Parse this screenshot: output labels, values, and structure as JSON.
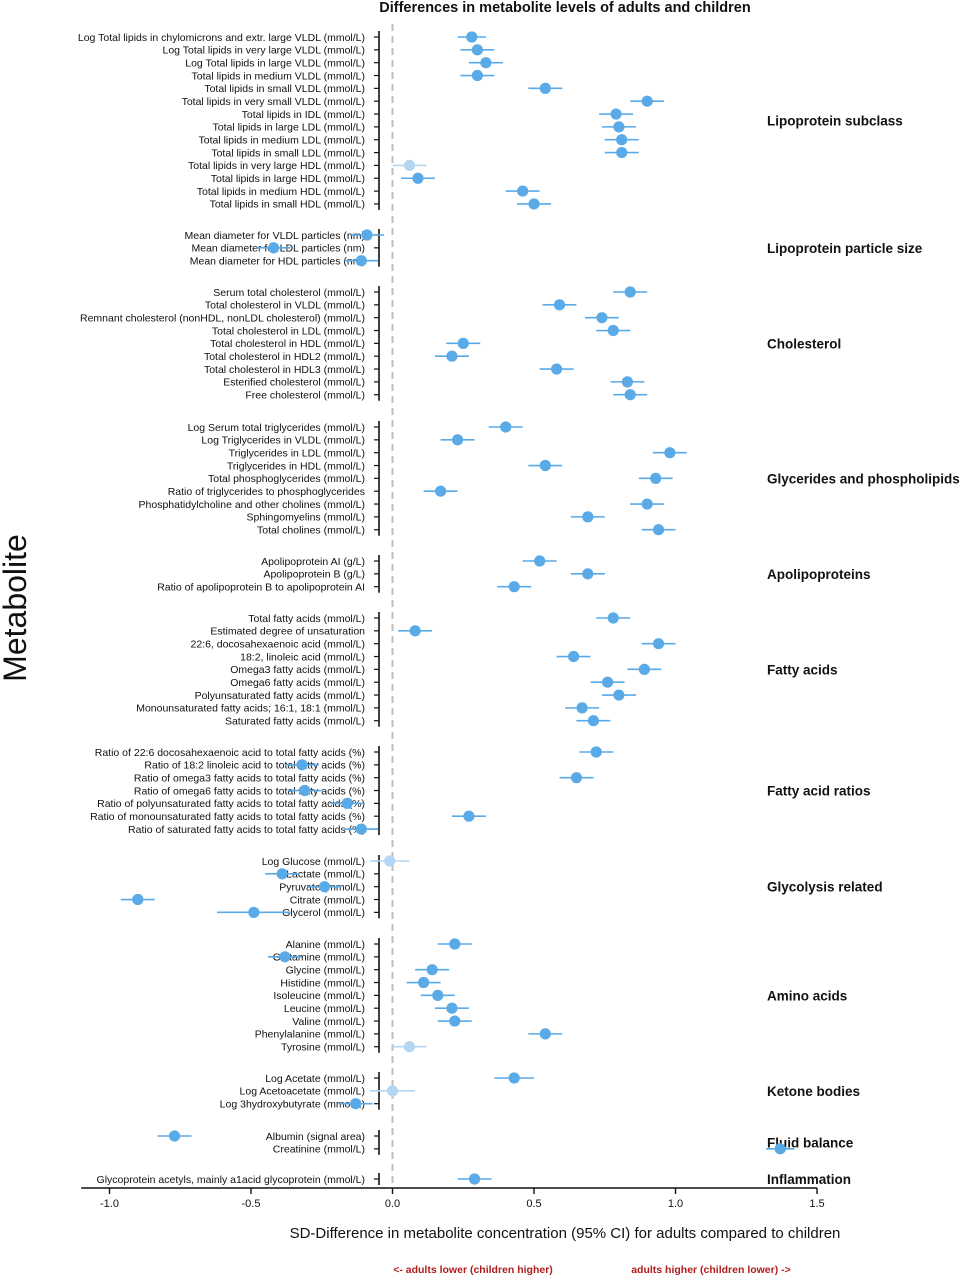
{
  "chart_data": {
    "type": "scatter",
    "title": "Differences in metabolite levels of adults and children",
    "xlabel": "SD-Difference in metabolite concentration (95% CI) for adults compared to children",
    "ylabel": "Metabolite",
    "xlim": [
      -1.1,
      1.5
    ],
    "xticks": [
      "-1.0",
      "-0.5",
      "0.0",
      "0.5",
      "1.0",
      "1.5"
    ],
    "xtick_values": [
      -1.0,
      -0.5,
      0.0,
      0.5,
      1.0,
      1.5
    ],
    "reference_line": 0.0,
    "point_color": "#5aaae8",
    "faded_point_color": "#b3d6f3",
    "note_color": "#b01c1c",
    "note_left": "<- adults lower (children higher)",
    "note_right": "adults higher (children lower) ->",
    "groups": [
      {
        "name": "Lipoprotein subclass",
        "rows": [
          {
            "label": "Log Total lipids in chylomicrons and extr. large VLDL (mmol/L)",
            "value": 0.28,
            "lo": 0.23,
            "hi": 0.33
          },
          {
            "label": "Log Total lipids in very large VLDL (mmol/L)",
            "value": 0.3,
            "lo": 0.24,
            "hi": 0.36
          },
          {
            "label": "Log Total lipids in large VLDL (mmol/L)",
            "value": 0.33,
            "lo": 0.27,
            "hi": 0.39
          },
          {
            "label": "Total lipids in medium VLDL (mmol/L)",
            "value": 0.3,
            "lo": 0.24,
            "hi": 0.36
          },
          {
            "label": "Total lipids in small VLDL (mmol/L)",
            "value": 0.54,
            "lo": 0.48,
            "hi": 0.6
          },
          {
            "label": "Total lipids in very small VLDL (mmol/L)",
            "value": 0.9,
            "lo": 0.84,
            "hi": 0.96
          },
          {
            "label": "Total lipids in IDL (mmol/L)",
            "value": 0.79,
            "lo": 0.73,
            "hi": 0.85
          },
          {
            "label": "Total lipids in large LDL (mmol/L)",
            "value": 0.8,
            "lo": 0.74,
            "hi": 0.86
          },
          {
            "label": "Total lipids in medium LDL (mmol/L)",
            "value": 0.81,
            "lo": 0.75,
            "hi": 0.87
          },
          {
            "label": "Total lipids in small LDL (mmol/L)",
            "value": 0.81,
            "lo": 0.75,
            "hi": 0.87
          },
          {
            "label": "Total lipids in very large HDL (mmol/L)",
            "value": 0.06,
            "lo": 0.0,
            "hi": 0.12,
            "faded": true
          },
          {
            "label": "Total lipids in large HDL (mmol/L)",
            "value": 0.09,
            "lo": 0.03,
            "hi": 0.15
          },
          {
            "label": "Total lipids in medium HDL (mmol/L)",
            "value": 0.46,
            "lo": 0.4,
            "hi": 0.52
          },
          {
            "label": "Total lipids in small HDL (mmol/L)",
            "value": 0.5,
            "lo": 0.44,
            "hi": 0.56
          }
        ]
      },
      {
        "name": "Lipoprotein particle size",
        "rows": [
          {
            "label": "Mean diameter for VLDL particles (nm)",
            "value": -0.09,
            "lo": -0.15,
            "hi": -0.03
          },
          {
            "label": "Mean diameter for LDL particles (nm)",
            "value": -0.42,
            "lo": -0.48,
            "hi": -0.36
          },
          {
            "label": "Mean diameter for HDL particles (nm)",
            "value": -0.11,
            "lo": -0.17,
            "hi": -0.05
          }
        ]
      },
      {
        "name": "Cholesterol",
        "rows": [
          {
            "label": "Serum total cholesterol (mmol/L)",
            "value": 0.84,
            "lo": 0.78,
            "hi": 0.9
          },
          {
            "label": "Total cholesterol in VLDL (mmol/L)",
            "value": 0.59,
            "lo": 0.53,
            "hi": 0.65
          },
          {
            "label": "Remnant cholesterol (nonHDL, nonLDL cholesterol) (mmol/L)",
            "value": 0.74,
            "lo": 0.68,
            "hi": 0.8
          },
          {
            "label": "Total cholesterol in LDL (mmol/L)",
            "value": 0.78,
            "lo": 0.72,
            "hi": 0.84
          },
          {
            "label": "Total cholesterol in HDL (mmol/L)",
            "value": 0.25,
            "lo": 0.19,
            "hi": 0.31
          },
          {
            "label": "Total cholesterol in HDL2 (mmol/L)",
            "value": 0.21,
            "lo": 0.15,
            "hi": 0.27
          },
          {
            "label": "Total cholesterol in HDL3 (mmol/L)",
            "value": 0.58,
            "lo": 0.52,
            "hi": 0.64
          },
          {
            "label": "Esterified cholesterol (mmol/L)",
            "value": 0.83,
            "lo": 0.77,
            "hi": 0.89
          },
          {
            "label": "Free cholesterol (mmol/L)",
            "value": 0.84,
            "lo": 0.78,
            "hi": 0.9
          }
        ]
      },
      {
        "name": "Glycerides and phospholipids",
        "rows": [
          {
            "label": "Log Serum total triglycerides (mmol/L)",
            "value": 0.4,
            "lo": 0.34,
            "hi": 0.46
          },
          {
            "label": "Log Triglycerides in VLDL (mmol/L)",
            "value": 0.23,
            "lo": 0.17,
            "hi": 0.29
          },
          {
            "label": "Triglycerides in LDL (mmol/L)",
            "value": 0.98,
            "lo": 0.92,
            "hi": 1.04
          },
          {
            "label": "Triglycerides in HDL (mmol/L)",
            "value": 0.54,
            "lo": 0.48,
            "hi": 0.6
          },
          {
            "label": "Total phosphoglycerides (mmol/L)",
            "value": 0.93,
            "lo": 0.87,
            "hi": 0.99
          },
          {
            "label": "Ratio of triglycerides to phosphoglycerides",
            "value": 0.17,
            "lo": 0.11,
            "hi": 0.23
          },
          {
            "label": "Phosphatidylcholine and other cholines (mmol/L)",
            "value": 0.9,
            "lo": 0.84,
            "hi": 0.96
          },
          {
            "label": "Sphingomyelins (mmol/L)",
            "value": 0.69,
            "lo": 0.63,
            "hi": 0.75
          },
          {
            "label": "Total cholines (mmol/L)",
            "value": 0.94,
            "lo": 0.88,
            "hi": 1.0
          }
        ]
      },
      {
        "name": "Apolipoproteins",
        "rows": [
          {
            "label": "Apolipoprotein AI (g/L)",
            "value": 0.52,
            "lo": 0.46,
            "hi": 0.58
          },
          {
            "label": "Apolipoprotein B (g/L)",
            "value": 0.69,
            "lo": 0.63,
            "hi": 0.75
          },
          {
            "label": "Ratio of apolipoprotein B to apolipoprotein AI",
            "value": 0.43,
            "lo": 0.37,
            "hi": 0.49
          }
        ]
      },
      {
        "name": "Fatty acids",
        "rows": [
          {
            "label": "Total fatty acids (mmol/L)",
            "value": 0.78,
            "lo": 0.72,
            "hi": 0.84
          },
          {
            "label": "Estimated degree of unsaturation",
            "value": 0.08,
            "lo": 0.02,
            "hi": 0.14
          },
          {
            "label": "22:6, docosahexaenoic acid (mmol/L)",
            "value": 0.94,
            "lo": 0.88,
            "hi": 1.0
          },
          {
            "label": "18:2, linoleic acid (mmol/L)",
            "value": 0.64,
            "lo": 0.58,
            "hi": 0.7
          },
          {
            "label": "Omega3 fatty acids (mmol/L)",
            "value": 0.89,
            "lo": 0.83,
            "hi": 0.95
          },
          {
            "label": "Omega6 fatty acids (mmol/L)",
            "value": 0.76,
            "lo": 0.7,
            "hi": 0.82
          },
          {
            "label": "Polyunsaturated fatty acids (mmol/L)",
            "value": 0.8,
            "lo": 0.74,
            "hi": 0.86
          },
          {
            "label": "Monounsaturated fatty acids; 16:1, 18:1 (mmol/L)",
            "value": 0.67,
            "lo": 0.61,
            "hi": 0.73
          },
          {
            "label": "Saturated fatty acids (mmol/L)",
            "value": 0.71,
            "lo": 0.65,
            "hi": 0.77
          }
        ]
      },
      {
        "name": "Fatty acid ratios",
        "rows": [
          {
            "label": "Ratio of 22:6 docosahexaenoic acid to total fatty acids (%)",
            "value": 0.72,
            "lo": 0.66,
            "hi": 0.78
          },
          {
            "label": "Ratio of 18:2 linoleic acid to total fatty acids (%)",
            "value": -0.32,
            "lo": -0.38,
            "hi": -0.26
          },
          {
            "label": "Ratio of omega3 fatty acids to total fatty acids (%)",
            "value": 0.65,
            "lo": 0.59,
            "hi": 0.71
          },
          {
            "label": "Ratio of omega6 fatty acids to total fatty acids (%)",
            "value": -0.31,
            "lo": -0.37,
            "hi": -0.25
          },
          {
            "label": "Ratio of polyunsaturated fatty acids to total fatty acids (%)",
            "value": -0.16,
            "lo": -0.22,
            "hi": -0.1
          },
          {
            "label": "Ratio of monounsaturated fatty acids to total fatty acids (%)",
            "value": 0.27,
            "lo": 0.21,
            "hi": 0.33
          },
          {
            "label": "Ratio of saturated fatty acids to total fatty acids (%)",
            "value": -0.11,
            "lo": -0.17,
            "hi": -0.05
          }
        ]
      },
      {
        "name": "Glycolysis related",
        "rows": [
          {
            "label": "Log Glucose (mmol/L)",
            "value": -0.01,
            "lo": -0.08,
            "hi": 0.06,
            "faded": true
          },
          {
            "label": "Lactate (mmol/L)",
            "value": -0.39,
            "lo": -0.45,
            "hi": -0.33
          },
          {
            "label": "Pyruvate (mmol/L)",
            "value": -0.24,
            "lo": -0.3,
            "hi": -0.18
          },
          {
            "label": "Citrate (mmol/L)",
            "value": -0.9,
            "lo": -0.96,
            "hi": -0.84
          },
          {
            "label": "Glycerol (mmol/L)",
            "value": -0.49,
            "lo": -0.62,
            "hi": -0.36
          }
        ]
      },
      {
        "name": "Amino acids",
        "rows": [
          {
            "label": "Alanine (mmol/L)",
            "value": 0.22,
            "lo": 0.16,
            "hi": 0.28
          },
          {
            "label": "Glutamine (mmol/L)",
            "value": -0.38,
            "lo": -0.44,
            "hi": -0.32
          },
          {
            "label": "Glycine (mmol/L)",
            "value": 0.14,
            "lo": 0.08,
            "hi": 0.2
          },
          {
            "label": "Histidine (mmol/L)",
            "value": 0.11,
            "lo": 0.05,
            "hi": 0.17
          },
          {
            "label": "Isoleucine (mmol/L)",
            "value": 0.16,
            "lo": 0.1,
            "hi": 0.22
          },
          {
            "label": "Leucine (mmol/L)",
            "value": 0.21,
            "lo": 0.15,
            "hi": 0.27
          },
          {
            "label": "Valine (mmol/L)",
            "value": 0.22,
            "lo": 0.16,
            "hi": 0.28
          },
          {
            "label": "Phenylalanine (mmol/L)",
            "value": 0.54,
            "lo": 0.48,
            "hi": 0.6
          },
          {
            "label": "Tyrosine (mmol/L)",
            "value": 0.06,
            "lo": 0.0,
            "hi": 0.12,
            "faded": true
          }
        ]
      },
      {
        "name": "Ketone bodies",
        "rows": [
          {
            "label": "Log Acetate (mmol/L)",
            "value": 0.43,
            "lo": 0.36,
            "hi": 0.5
          },
          {
            "label": "Log Acetoacetate (mmol/L)",
            "value": 0.0,
            "lo": -0.08,
            "hi": 0.08,
            "faded": true
          },
          {
            "label": "Log 3hydroxybutyrate (mmol/L)",
            "value": -0.13,
            "lo": -0.19,
            "hi": -0.07
          }
        ]
      },
      {
        "name": "Fluid balance",
        "rows": [
          {
            "label": "Albumin (signal area)",
            "value": -0.77,
            "lo": -0.83,
            "hi": -0.71
          },
          {
            "label": "Creatinine (mmol/L)",
            "value": 1.37,
            "lo": 1.32,
            "hi": 1.42
          }
        ]
      },
      {
        "name": "Inflammation",
        "rows": [
          {
            "label": "Glycoprotein acetyls, mainly a1acid glycoprotein (mmol/L)",
            "value": 0.29,
            "lo": 0.23,
            "hi": 0.35
          }
        ]
      }
    ]
  }
}
